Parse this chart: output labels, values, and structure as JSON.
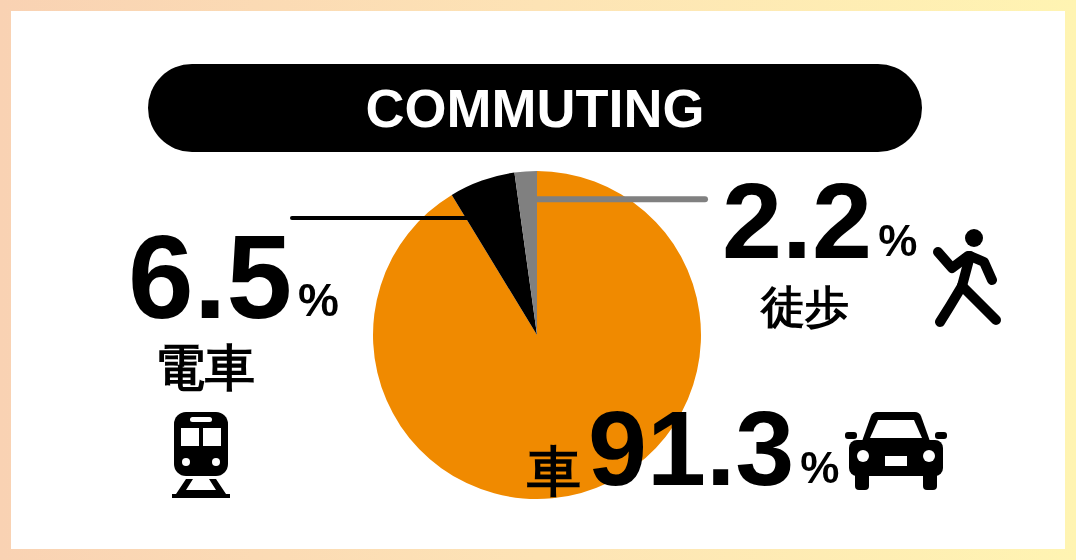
{
  "chart_data": {
    "type": "pie",
    "title": "COMMUTING",
    "categories": [
      "車",
      "電車",
      "徒歩"
    ],
    "values": [
      91.3,
      6.5,
      2.2
    ],
    "colors": [
      "#f08a00",
      "#000000",
      "#808080"
    ],
    "value_labels": [
      "91.3%",
      "6.5%",
      "2.2%"
    ]
  }
}
